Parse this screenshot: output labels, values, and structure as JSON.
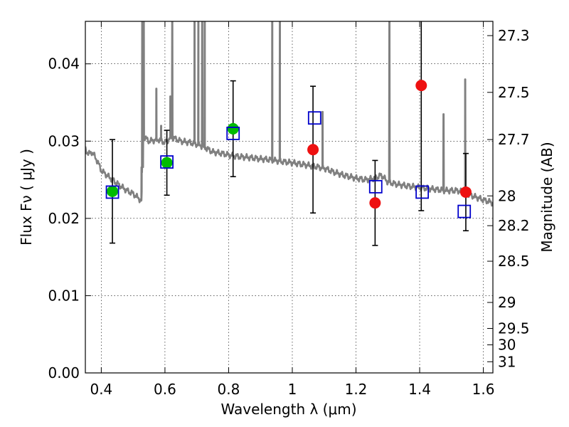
{
  "chart_data": {
    "type": "scatter",
    "title": "",
    "xlabel": "Wavelength  λ (μm)",
    "ylabel": "Flux  Fν  ( μJy )",
    "ylabel_right": "Magnitude (AB)",
    "xlim": [
      0.35,
      1.63
    ],
    "ylim": [
      0.0,
      0.0455
    ],
    "grid": true,
    "x_ticks": [
      0.4,
      0.6,
      0.8,
      1.0,
      1.2,
      1.4,
      1.6
    ],
    "x_tick_labels": [
      "0.4",
      "0.6",
      "0.8",
      "1",
      "1.2",
      "1.4",
      "1.6"
    ],
    "y_ticks": [
      0.0,
      0.01,
      0.02,
      0.03,
      0.04
    ],
    "y_tick_labels": [
      "0.00",
      "0.01",
      "0.02",
      "0.03",
      "0.04"
    ],
    "right_ticks": [
      {
        "label": "27.3",
        "value": 27.3
      },
      {
        "label": "27.5",
        "value": 27.5
      },
      {
        "label": "27.7",
        "value": 27.7
      },
      {
        "label": "28",
        "value": 28.0
      },
      {
        "label": "28.2",
        "value": 28.2
      },
      {
        "label": "28.5",
        "value": 28.5
      },
      {
        "label": "29",
        "value": 29.0
      },
      {
        "label": "29.5",
        "value": 29.5
      },
      {
        "label": "30",
        "value": 30.0
      },
      {
        "label": "31",
        "value": 31.0
      }
    ],
    "series": [
      {
        "marker": "circle",
        "color": "#00bb00",
        "points": [
          {
            "x": 0.435,
            "y": 0.0235,
            "err": 0.0067
          },
          {
            "x": 0.606,
            "y": 0.0272,
            "err": 0.0042
          },
          {
            "x": 0.814,
            "y": 0.0316,
            "err": 0.0062
          }
        ]
      },
      {
        "marker": "circle",
        "color": "#ee1111",
        "points": [
          {
            "x": 1.065,
            "y": 0.0289,
            "err": 0.0082
          },
          {
            "x": 1.26,
            "y": 0.022,
            "err": 0.0055
          },
          {
            "x": 1.405,
            "y": 0.0372,
            "err": 0.0162
          },
          {
            "x": 1.545,
            "y": 0.0234,
            "err": 0.005
          }
        ]
      },
      {
        "marker": "open-square",
        "color": "#0000cc",
        "points": [
          {
            "x": 0.435,
            "y": 0.0234
          },
          {
            "x": 0.606,
            "y": 0.0273
          },
          {
            "x": 0.814,
            "y": 0.031
          },
          {
            "x": 1.07,
            "y": 0.033
          },
          {
            "x": 1.262,
            "y": 0.0241
          },
          {
            "x": 1.408,
            "y": 0.0234
          },
          {
            "x": 1.54,
            "y": 0.0209
          }
        ]
      }
    ],
    "spectrum": {
      "color": "#808080",
      "x": [
        0.35,
        0.36,
        0.37,
        0.38,
        0.39,
        0.4,
        0.42,
        0.45,
        0.48,
        0.5,
        0.52,
        0.527,
        0.53,
        0.535,
        0.55,
        0.58,
        0.6,
        0.62,
        0.65,
        0.68,
        0.7,
        0.72,
        0.75,
        0.78,
        0.8,
        0.83,
        0.86,
        0.9,
        0.93,
        0.96,
        1.0,
        1.03,
        1.06,
        1.1,
        1.13,
        1.16,
        1.2,
        1.23,
        1.26,
        1.28,
        1.3,
        1.33,
        1.36,
        1.4,
        1.44,
        1.48,
        1.52,
        1.56,
        1.6,
        1.63
      ],
      "y": [
        0.029,
        0.0283,
        0.0286,
        0.028,
        0.0272,
        0.0262,
        0.0255,
        0.0245,
        0.0236,
        0.0232,
        0.0225,
        0.0222,
        0.03,
        0.0305,
        0.03,
        0.0302,
        0.0298,
        0.0305,
        0.03,
        0.0298,
        0.0296,
        0.0293,
        0.0286,
        0.0284,
        0.0282,
        0.028,
        0.0279,
        0.0277,
        0.0276,
        0.0274,
        0.0272,
        0.027,
        0.0268,
        0.0265,
        0.026,
        0.0256,
        0.0252,
        0.025,
        0.0252,
        0.0256,
        0.0247,
        0.0244,
        0.0242,
        0.024,
        0.0238,
        0.0236,
        0.0236,
        0.023,
        0.0224,
        0.022
      ]
    },
    "emission_lines": [
      {
        "x": 0.5287,
        "peak": 0.0455
      },
      {
        "x": 0.5335,
        "peak": 0.0455
      },
      {
        "x": 0.573,
        "peak": 0.0368
      },
      {
        "x": 0.588,
        "peak": 0.032
      },
      {
        "x": 0.617,
        "peak": 0.0358
      },
      {
        "x": 0.623,
        "peak": 0.0455
      },
      {
        "x": 0.693,
        "peak": 0.0455
      },
      {
        "x": 0.705,
        "peak": 0.0455
      },
      {
        "x": 0.717,
        "peak": 0.0455
      },
      {
        "x": 0.725,
        "peak": 0.0455
      },
      {
        "x": 0.937,
        "peak": 0.0455
      },
      {
        "x": 0.961,
        "peak": 0.0455
      },
      {
        "x": 1.095,
        "peak": 0.0338
      },
      {
        "x": 1.305,
        "peak": 0.0455
      },
      {
        "x": 1.475,
        "peak": 0.0335
      },
      {
        "x": 1.543,
        "peak": 0.038
      }
    ]
  }
}
